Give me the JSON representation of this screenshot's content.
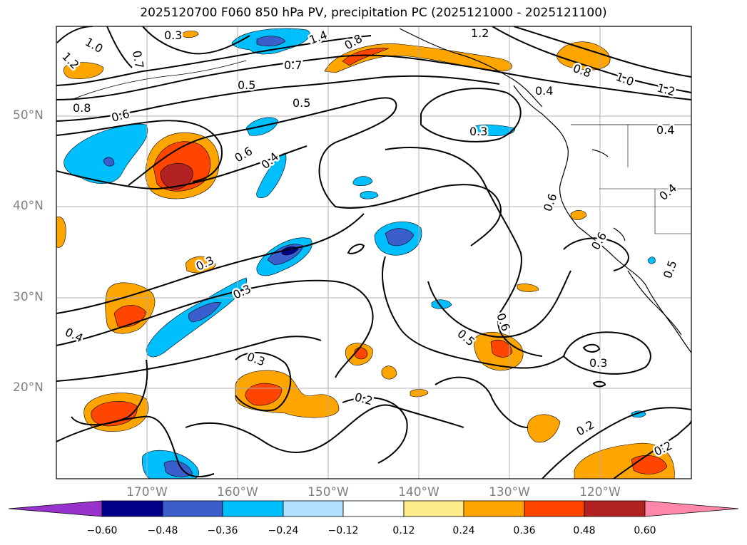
{
  "title": "2025120700 F060 850 hPa PV, precipitation PC (2025121000 - 2025121100)",
  "lat_labels": [
    "50°N",
    "40°N",
    "30°N",
    "20°N"
  ],
  "lon_labels": [
    "170°W",
    "160°W",
    "150°W",
    "140°W",
    "130°W",
    "120°W"
  ],
  "contour_labels": [
    "1.0",
    "1.2",
    "0.7",
    "0.3",
    "0.5",
    "1.4",
    "0.8",
    "1.2",
    "0.7",
    "0.8",
    "1.0",
    "1.2",
    "0.8",
    "0.6",
    "0.5",
    "0.4",
    "0.3",
    "0.4",
    "0.6",
    "0.4",
    "0.6",
    "0.6",
    "0.4",
    "0.3",
    "0.3",
    "0.4",
    "0.3",
    "0.2",
    "0.6",
    "0.5",
    "0.3",
    "0.2",
    "0.2",
    "0.5"
  ],
  "colorbar": {
    "tick_labels": [
      "−0.60",
      "−0.48",
      "−0.36",
      "−0.24",
      "−0.12",
      "0.12",
      "0.24",
      "0.36",
      "0.48",
      "0.60"
    ],
    "colors": [
      "#9932cc",
      "#00008b",
      "#3a5fcd",
      "#00bfff",
      "#b0e2ff",
      "#ffffff",
      "#ffec8b",
      "#ffa500",
      "#ff4500",
      "#b22222",
      "#ff88aa"
    ]
  },
  "colors": {
    "neg_dark": "#00008b",
    "neg_mid": "#3a5fcd",
    "neg_light": "#00bfff",
    "pos_light": "#ffa500",
    "pos_mid": "#ff4500",
    "pos_dark": "#b22222",
    "grid": "#b0b0b0"
  }
}
